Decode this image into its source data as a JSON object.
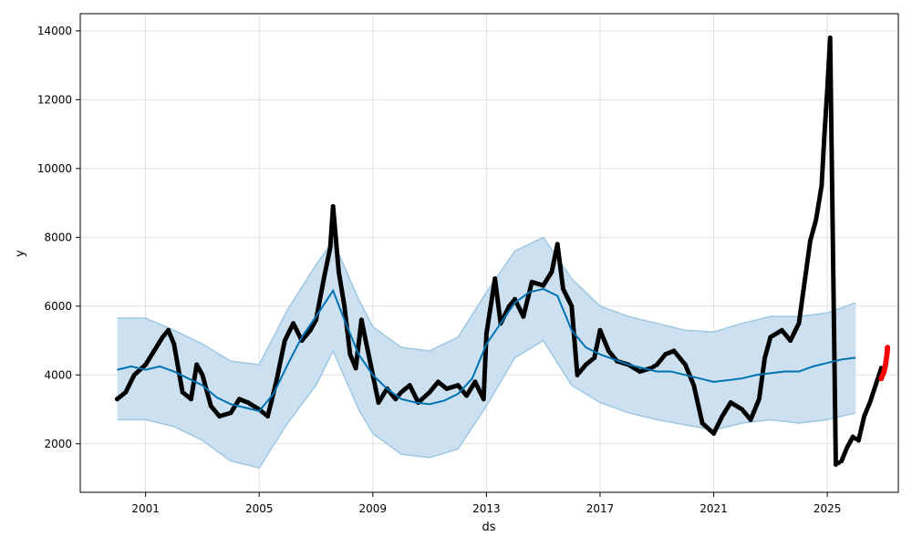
{
  "chart_data": {
    "type": "scatter",
    "xlabel": "ds",
    "ylabel": "y",
    "x_ticks": [
      "2001",
      "2005",
      "2009",
      "2013",
      "2017",
      "2021",
      "2025"
    ],
    "y_ticks": [
      "2000",
      "4000",
      "6000",
      "8000",
      "10000",
      "12000",
      "14000"
    ],
    "xlim": [
      1998.7,
      2027.5
    ],
    "ylim": [
      590,
      14500
    ],
    "grid": true,
    "colors": {
      "observed": "#000000",
      "forecast_line": "#0072B2",
      "interval_fill": "#cce0ef",
      "interval_edge": "#9ec8e2",
      "recent_points": "#ff0000"
    },
    "series": [
      {
        "key": "trend",
        "points": [
          [
            2000.0,
            4150
          ],
          [
            2000.5,
            4250
          ],
          [
            2001.0,
            4150
          ],
          [
            2001.5,
            4250
          ],
          [
            2002.0,
            4100
          ],
          [
            2002.5,
            3900
          ],
          [
            2003.0,
            3700
          ],
          [
            2003.5,
            3350
          ],
          [
            2004.0,
            3150
          ],
          [
            2004.5,
            3050
          ],
          [
            2005.0,
            2950
          ],
          [
            2005.5,
            3450
          ],
          [
            2006.0,
            4300
          ],
          [
            2006.5,
            5100
          ],
          [
            2007.0,
            5700
          ],
          [
            2007.6,
            6450
          ],
          [
            2008.0,
            5600
          ],
          [
            2008.5,
            4600
          ],
          [
            2009.0,
            4000
          ],
          [
            2009.5,
            3600
          ],
          [
            2010.0,
            3300
          ],
          [
            2010.5,
            3200
          ],
          [
            2011.0,
            3150
          ],
          [
            2011.5,
            3250
          ],
          [
            2012.0,
            3450
          ],
          [
            2012.5,
            3900
          ],
          [
            2013.0,
            4900
          ],
          [
            2013.5,
            5500
          ],
          [
            2014.0,
            6100
          ],
          [
            2014.5,
            6400
          ],
          [
            2015.0,
            6500
          ],
          [
            2015.5,
            6300
          ],
          [
            2016.0,
            5300
          ],
          [
            2016.5,
            4800
          ],
          [
            2017.0,
            4600
          ],
          [
            2017.5,
            4450
          ],
          [
            2018.0,
            4300
          ],
          [
            2018.5,
            4200
          ],
          [
            2019.0,
            4100
          ],
          [
            2019.5,
            4100
          ],
          [
            2020.0,
            4000
          ],
          [
            2020.5,
            3900
          ],
          [
            2021.0,
            3800
          ],
          [
            2021.5,
            3850
          ],
          [
            2022.0,
            3900
          ],
          [
            2022.5,
            4000
          ],
          [
            2023.0,
            4050
          ],
          [
            2023.5,
            4100
          ],
          [
            2024.0,
            4100
          ],
          [
            2024.5,
            4250
          ],
          [
            2025.0,
            4350
          ],
          [
            2025.5,
            4450
          ],
          [
            2026.0,
            4500
          ]
        ]
      },
      {
        "key": "interval",
        "upper": [
          [
            2000.0,
            5650
          ],
          [
            2001.0,
            5650
          ],
          [
            2002.0,
            5300
          ],
          [
            2003.0,
            4900
          ],
          [
            2004.0,
            4400
          ],
          [
            2005.0,
            4300
          ],
          [
            2006.0,
            5900
          ],
          [
            2007.0,
            7200
          ],
          [
            2007.6,
            7900
          ],
          [
            2008.5,
            6200
          ],
          [
            2009.0,
            5400
          ],
          [
            2010.0,
            4800
          ],
          [
            2011.0,
            4700
          ],
          [
            2012.0,
            5100
          ],
          [
            2013.0,
            6400
          ],
          [
            2014.0,
            7600
          ],
          [
            2015.0,
            8000
          ],
          [
            2016.0,
            6800
          ],
          [
            2017.0,
            6000
          ],
          [
            2018.0,
            5700
          ],
          [
            2019.0,
            5500
          ],
          [
            2020.0,
            5300
          ],
          [
            2021.0,
            5250
          ],
          [
            2022.0,
            5500
          ],
          [
            2023.0,
            5700
          ],
          [
            2024.0,
            5700
          ],
          [
            2025.0,
            5800
          ],
          [
            2026.0,
            6100
          ]
        ],
        "lower": [
          [
            2000.0,
            2700
          ],
          [
            2001.0,
            2700
          ],
          [
            2002.0,
            2500
          ],
          [
            2003.0,
            2100
          ],
          [
            2004.0,
            1500
          ],
          [
            2005.0,
            1300
          ],
          [
            2006.0,
            2600
          ],
          [
            2007.0,
            3700
          ],
          [
            2007.6,
            4700
          ],
          [
            2008.5,
            3000
          ],
          [
            2009.0,
            2300
          ],
          [
            2010.0,
            1700
          ],
          [
            2011.0,
            1600
          ],
          [
            2012.0,
            1850
          ],
          [
            2013.0,
            3100
          ],
          [
            2014.0,
            4500
          ],
          [
            2015.0,
            5000
          ],
          [
            2016.0,
            3700
          ],
          [
            2017.0,
            3200
          ],
          [
            2018.0,
            2900
          ],
          [
            2019.0,
            2700
          ],
          [
            2020.0,
            2550
          ],
          [
            2021.0,
            2400
          ],
          [
            2022.0,
            2600
          ],
          [
            2023.0,
            2700
          ],
          [
            2024.0,
            2600
          ],
          [
            2025.0,
            2700
          ],
          [
            2026.0,
            2900
          ]
        ]
      },
      {
        "key": "observed",
        "points": [
          [
            2000.0,
            3300
          ],
          [
            2000.3,
            3500
          ],
          [
            2000.6,
            4000
          ],
          [
            2001.0,
            4300
          ],
          [
            2001.3,
            4700
          ],
          [
            2001.6,
            5100
          ],
          [
            2001.8,
            5300
          ],
          [
            2002.0,
            4900
          ],
          [
            2002.3,
            3500
          ],
          [
            2002.6,
            3300
          ],
          [
            2002.8,
            4300
          ],
          [
            2003.0,
            4000
          ],
          [
            2003.3,
            3100
          ],
          [
            2003.6,
            2800
          ],
          [
            2004.0,
            2900
          ],
          [
            2004.3,
            3300
          ],
          [
            2004.6,
            3200
          ],
          [
            2005.0,
            3000
          ],
          [
            2005.3,
            2800
          ],
          [
            2005.6,
            3800
          ],
          [
            2005.9,
            5000
          ],
          [
            2006.2,
            5500
          ],
          [
            2006.5,
            5000
          ],
          [
            2006.8,
            5300
          ],
          [
            2007.0,
            5600
          ],
          [
            2007.3,
            6900
          ],
          [
            2007.5,
            7700
          ],
          [
            2007.6,
            8900
          ],
          [
            2007.8,
            7000
          ],
          [
            2008.0,
            6000
          ],
          [
            2008.2,
            4600
          ],
          [
            2008.4,
            4200
          ],
          [
            2008.6,
            5600
          ],
          [
            2008.8,
            4800
          ],
          [
            2009.0,
            4000
          ],
          [
            2009.2,
            3200
          ],
          [
            2009.5,
            3600
          ],
          [
            2009.8,
            3300
          ],
          [
            2010.0,
            3500
          ],
          [
            2010.3,
            3700
          ],
          [
            2010.6,
            3200
          ],
          [
            2011.0,
            3500
          ],
          [
            2011.3,
            3800
          ],
          [
            2011.6,
            3600
          ],
          [
            2012.0,
            3700
          ],
          [
            2012.3,
            3400
          ],
          [
            2012.6,
            3800
          ],
          [
            2012.9,
            3300
          ],
          [
            2013.0,
            5200
          ],
          [
            2013.3,
            6800
          ],
          [
            2013.5,
            5500
          ],
          [
            2013.8,
            6000
          ],
          [
            2014.0,
            6200
          ],
          [
            2014.3,
            5700
          ],
          [
            2014.6,
            6700
          ],
          [
            2015.0,
            6600
          ],
          [
            2015.3,
            7000
          ],
          [
            2015.5,
            7800
          ],
          [
            2015.7,
            6500
          ],
          [
            2016.0,
            6000
          ],
          [
            2016.2,
            4000
          ],
          [
            2016.5,
            4300
          ],
          [
            2016.8,
            4500
          ],
          [
            2017.0,
            5300
          ],
          [
            2017.3,
            4700
          ],
          [
            2017.6,
            4400
          ],
          [
            2018.0,
            4300
          ],
          [
            2018.4,
            4100
          ],
          [
            2018.8,
            4200
          ],
          [
            2019.0,
            4300
          ],
          [
            2019.3,
            4600
          ],
          [
            2019.6,
            4700
          ],
          [
            2020.0,
            4300
          ],
          [
            2020.3,
            3700
          ],
          [
            2020.6,
            2600
          ],
          [
            2021.0,
            2300
          ],
          [
            2021.3,
            2800
          ],
          [
            2021.6,
            3200
          ],
          [
            2022.0,
            3000
          ],
          [
            2022.3,
            2700
          ],
          [
            2022.6,
            3300
          ],
          [
            2022.8,
            4500
          ],
          [
            2023.0,
            5100
          ],
          [
            2023.4,
            5300
          ],
          [
            2023.7,
            5000
          ],
          [
            2024.0,
            5500
          ],
          [
            2024.2,
            6700
          ],
          [
            2024.4,
            7900
          ],
          [
            2024.6,
            8500
          ],
          [
            2024.8,
            9500
          ],
          [
            2024.9,
            11000
          ],
          [
            2025.0,
            12300
          ],
          [
            2025.1,
            13800
          ],
          [
            2025.3,
            1400
          ],
          [
            2025.5,
            1500
          ],
          [
            2025.7,
            1900
          ],
          [
            2025.9,
            2200
          ],
          [
            2026.1,
            2100
          ],
          [
            2026.3,
            2800
          ],
          [
            2026.5,
            3200
          ],
          [
            2026.7,
            3700
          ],
          [
            2026.9,
            4200
          ]
        ]
      },
      {
        "key": "recent",
        "points": [
          [
            2026.9,
            3900
          ],
          [
            2027.0,
            4100
          ],
          [
            2027.05,
            4300
          ],
          [
            2027.1,
            4600
          ],
          [
            2027.12,
            4800
          ]
        ]
      }
    ]
  }
}
